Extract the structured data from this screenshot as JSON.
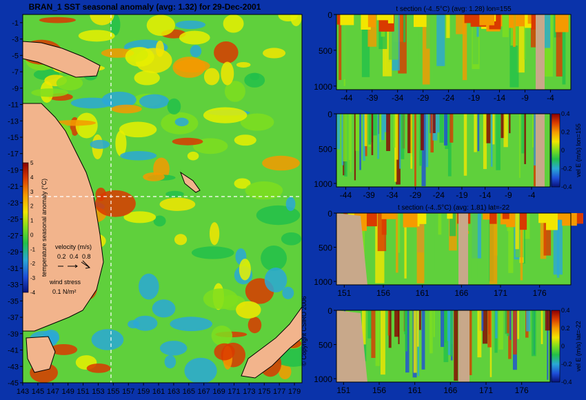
{
  "chart_data": [
    {
      "type": "heatmap",
      "title": "BRAN_1  SST seasonal anomaly (avg: 1.32) for 29-Dec-2001",
      "y_ticks": [
        "-1",
        "-3",
        "-5",
        "-7",
        "-9",
        "-11",
        "-13",
        "-15",
        "-17",
        "-19",
        "-21",
        "-23",
        "-25",
        "-27",
        "-29",
        "-31",
        "-33",
        "-35",
        "-37",
        "-39",
        "-41",
        "-43",
        "-45"
      ],
      "x_ticks": [
        "143",
        "145",
        "147",
        "149",
        "151",
        "153",
        "155",
        "157",
        "159",
        "161",
        "163",
        "165",
        "167",
        "169",
        "171",
        "173",
        "175",
        "177",
        "179"
      ],
      "xlim": [
        143,
        180
      ],
      "ylim": [
        -45,
        0
      ],
      "section_lines": {
        "lon": 155,
        "lat": -22
      },
      "colorbar": {
        "label": "temperature seasonal anomaly (°C)",
        "ticks": [
          "5",
          "4",
          "3",
          "2",
          "1",
          "0",
          "-1",
          "-2",
          "-3",
          "-4"
        ],
        "range": [
          -4,
          5
        ]
      },
      "legend": {
        "velocity_label": "velocity (m/s)",
        "velocity_values": [
          "0.2",
          "0.4",
          "0.8"
        ],
        "wind_label": "wind stress",
        "wind_value": "0.1  N/m²"
      },
      "copyright": "© Copyright CSIRO 2006"
    },
    {
      "type": "heatmap",
      "title": "t section (-4..5°C) (avg: 1.28) lon=155",
      "x_ticks": [
        "-44",
        "-39",
        "-34",
        "-29",
        "-24",
        "-19",
        "-14",
        "-9",
        "-4"
      ],
      "y_ticks": [
        "0",
        "500",
        "1000"
      ],
      "xlim": [
        -46,
        0
      ],
      "ylim": [
        1050,
        0
      ]
    },
    {
      "type": "heatmap",
      "title": "",
      "x_ticks": [
        "-44",
        "-39",
        "-34",
        "-29",
        "-24",
        "-19",
        "-14",
        "-9",
        "-4"
      ],
      "y_ticks": [
        "0",
        "500",
        "1000"
      ],
      "xlim": [
        -46,
        0
      ],
      "ylim": [
        1050,
        0
      ],
      "colorbar": {
        "label": "vel  E (m/s) lon=155",
        "ticks": [
          "0.4",
          "0.2",
          "0",
          "-0.2",
          "-0.4"
        ],
        "range": [
          -0.4,
          0.4
        ]
      }
    },
    {
      "type": "heatmap",
      "title": "t section (-4..5°C) (avg: 1.81) lat=-22",
      "x_ticks": [
        "151",
        "156",
        "161",
        "166",
        "171",
        "176"
      ],
      "y_ticks": [
        "0",
        "500",
        "1000"
      ],
      "xlim": [
        150,
        180
      ],
      "ylim": [
        1050,
        0
      ]
    },
    {
      "type": "heatmap",
      "title": "",
      "x_ticks": [
        "151",
        "156",
        "161",
        "166",
        "171",
        "176"
      ],
      "y_ticks": [
        "0",
        "500",
        "1000"
      ],
      "xlim": [
        150,
        180
      ],
      "ylim": [
        1050,
        0
      ],
      "colorbar": {
        "label": "vel  E (m/s) lat=-22",
        "ticks": [
          "0.4",
          "0.2",
          "0",
          "-0.2",
          "-0.4"
        ],
        "range": [
          -0.4,
          0.4
        ]
      }
    }
  ]
}
